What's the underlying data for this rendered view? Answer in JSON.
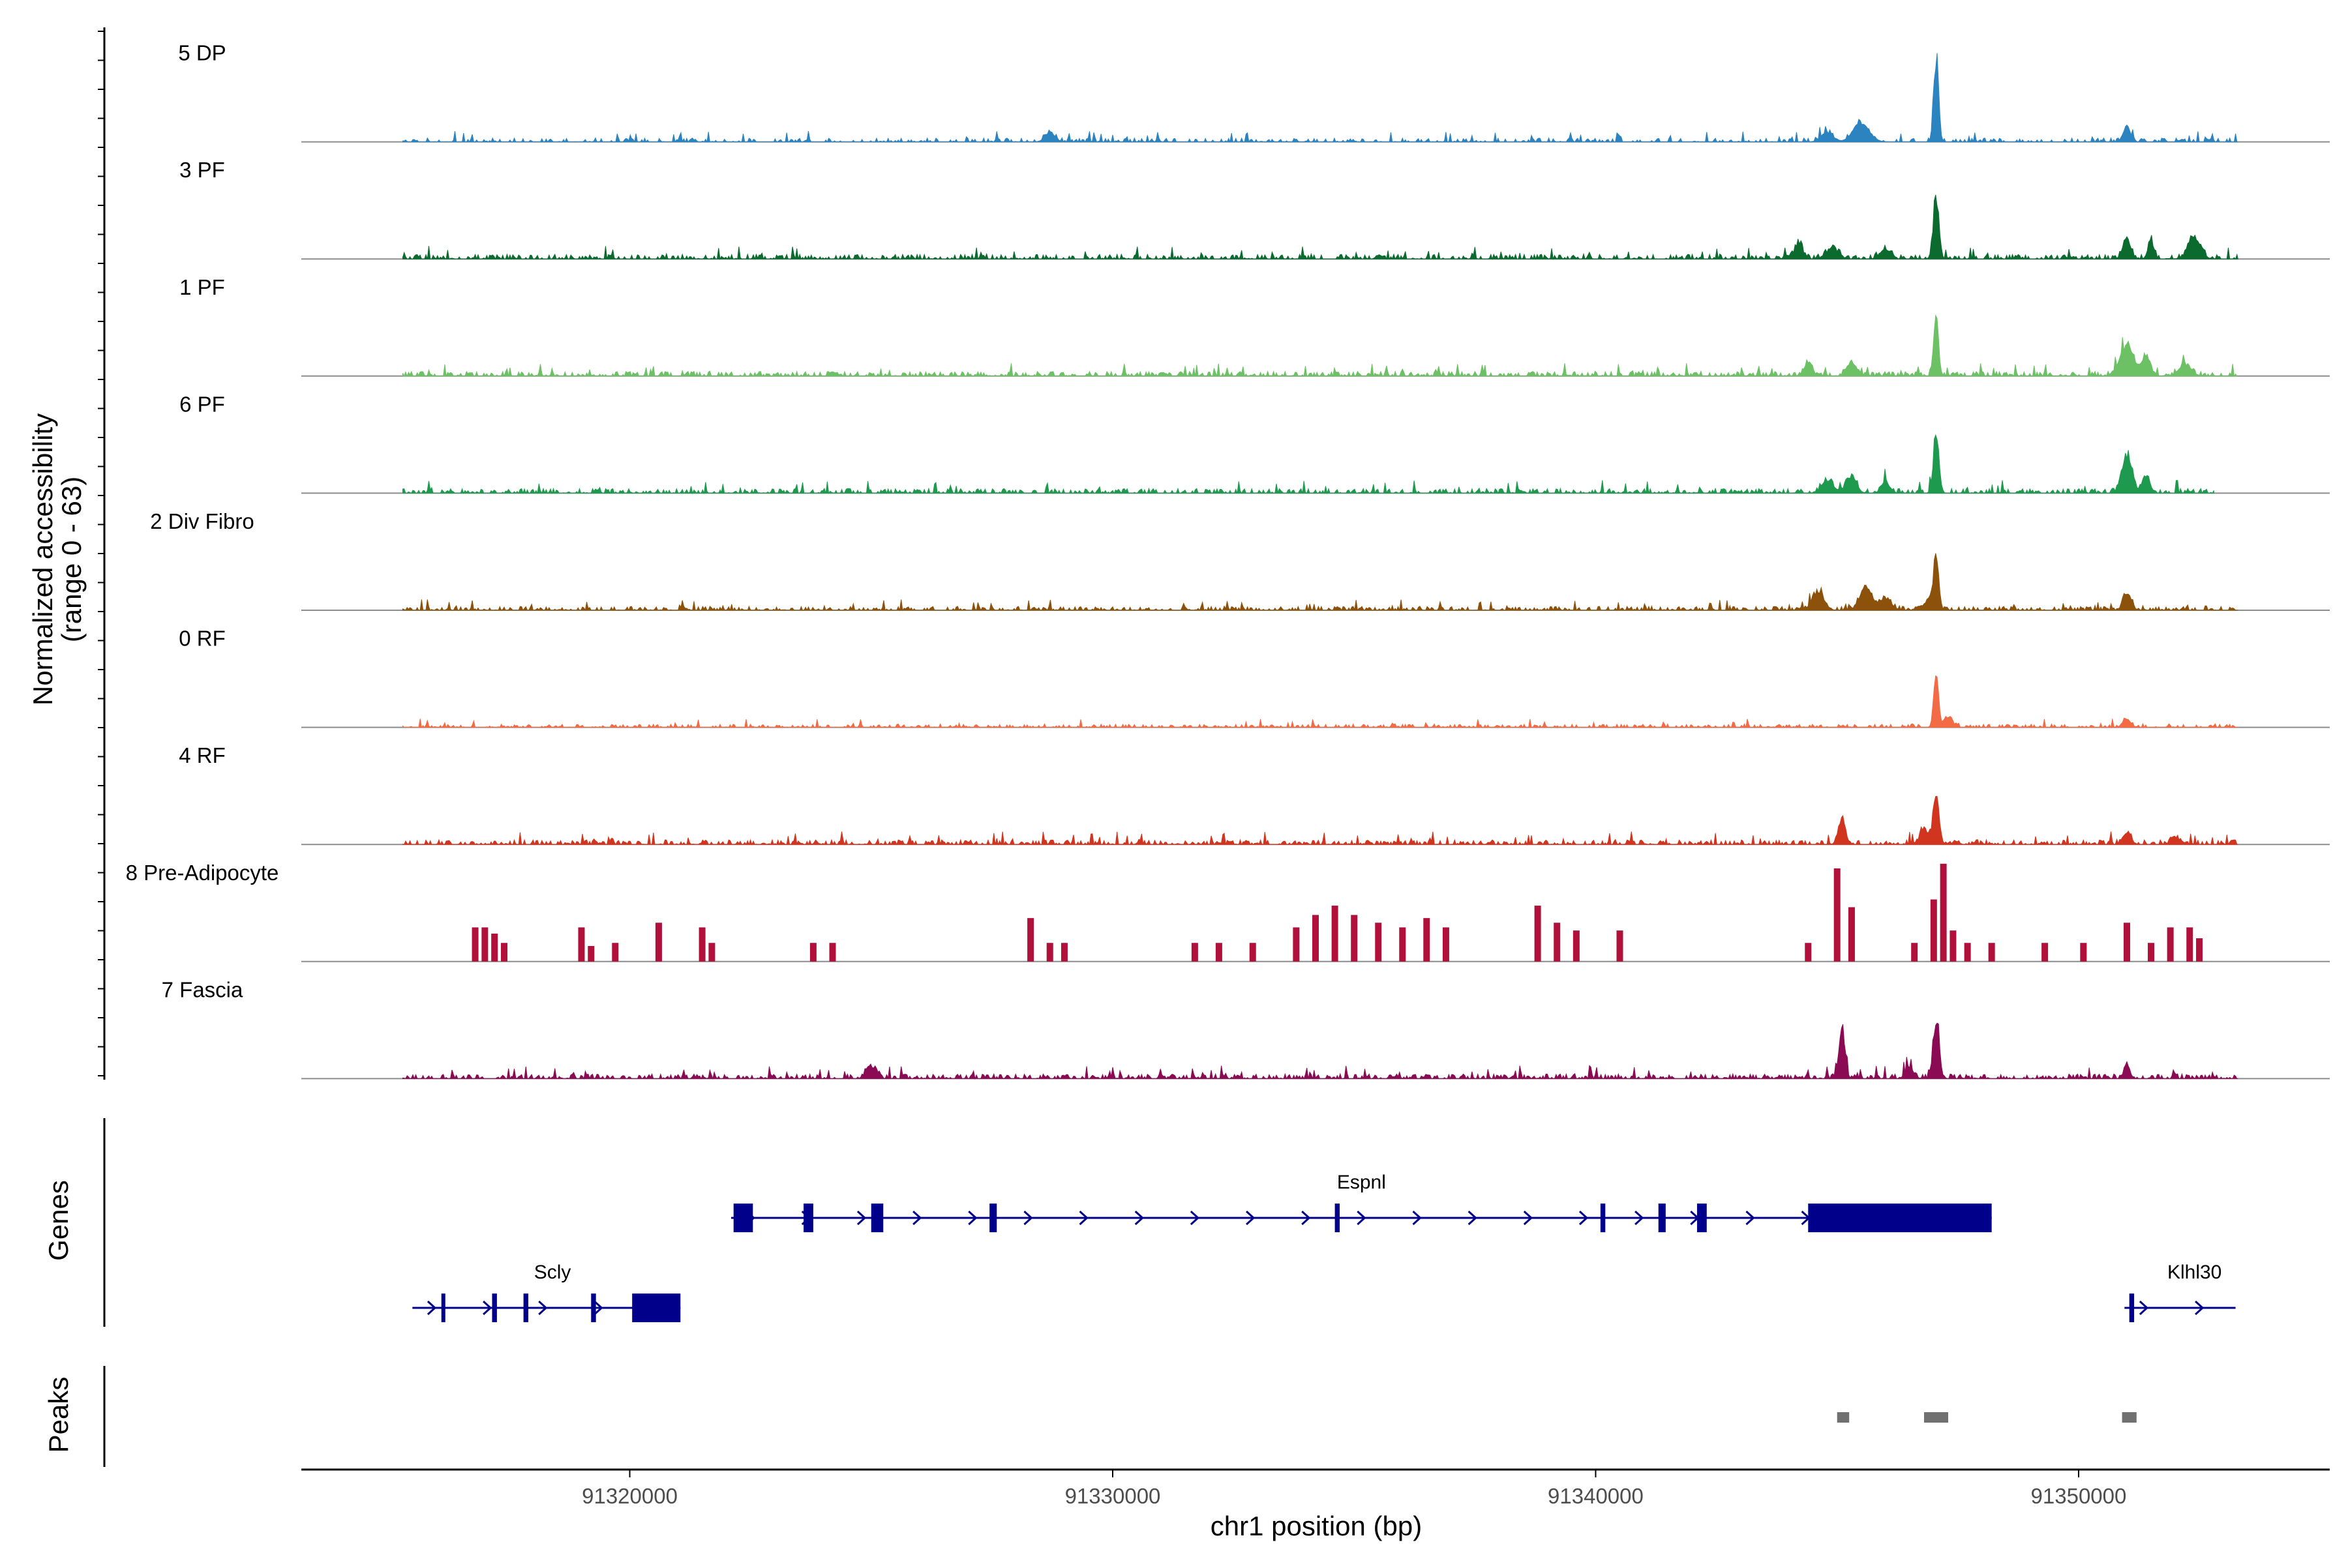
{
  "chart_data": {
    "type": "coverage",
    "title": "",
    "y_axis_label_line1": "Normalized accessibility",
    "y_axis_label_line2": "(range 0 - 63)",
    "y_range": [
      0,
      63
    ],
    "x_axis_label": "chr1 position (bp)",
    "xlim": [
      91313200,
      91355200
    ],
    "x_ticks": [
      {
        "value": 91320000,
        "label": "91320000"
      },
      {
        "value": 91330000,
        "label": "91330000"
      },
      {
        "value": 91340000,
        "label": "91340000"
      },
      {
        "value": 91350000,
        "label": "91350000"
      }
    ],
    "tracks": [
      {
        "label": "5 DP",
        "color": "#2b83c0",
        "start": 91315300,
        "end": 91353300,
        "base": 2.5,
        "density": 0.45,
        "seed": 11,
        "sparse": false,
        "peaks": [
          [
            91347050,
            63,
            120
          ],
          [
            91345500,
            14,
            400
          ],
          [
            91344800,
            7,
            300
          ],
          [
            91351000,
            11,
            180
          ],
          [
            91328700,
            7,
            250
          ]
        ]
      },
      {
        "label": "3 PF",
        "color": "#0b6b2f",
        "start": 91315300,
        "end": 91353300,
        "base": 3,
        "density": 0.55,
        "seed": 23,
        "sparse": false,
        "peaks": [
          [
            91347050,
            48,
            140
          ],
          [
            91352400,
            17,
            300
          ],
          [
            91351000,
            15,
            200
          ],
          [
            91351500,
            13,
            150
          ],
          [
            91344200,
            12,
            200
          ],
          [
            91344900,
            8,
            300
          ],
          [
            91346000,
            7,
            250
          ]
        ]
      },
      {
        "label": "1 PF",
        "color": "#6cc164",
        "start": 91315300,
        "end": 91353300,
        "base": 3,
        "density": 0.6,
        "seed": 37,
        "sparse": false,
        "peaks": [
          [
            91347050,
            47,
            120
          ],
          [
            91351000,
            22,
            350
          ],
          [
            91351400,
            15,
            200
          ],
          [
            91345300,
            10,
            250
          ],
          [
            91344400,
            9,
            200
          ],
          [
            91352200,
            8,
            300
          ]
        ]
      },
      {
        "label": "6 PF",
        "color": "#1e9a4f",
        "start": 91315300,
        "end": 91352800,
        "base": 3,
        "density": 0.6,
        "seed": 51,
        "sparse": false,
        "peaks": [
          [
            91347050,
            42,
            140
          ],
          [
            91351000,
            27,
            250
          ],
          [
            91351400,
            12,
            200
          ],
          [
            91345300,
            12,
            250
          ],
          [
            91344800,
            9,
            300
          ],
          [
            91346000,
            8,
            200
          ]
        ]
      },
      {
        "label": "2 Div Fibro",
        "color": "#8c510a",
        "start": 91315300,
        "end": 91353300,
        "base": 2.5,
        "density": 0.55,
        "seed": 67,
        "sparse": false,
        "peaks": [
          [
            91347050,
            41,
            130
          ],
          [
            91345600,
            17,
            300
          ],
          [
            91344600,
            13,
            300
          ],
          [
            91351000,
            12,
            200
          ],
          [
            91346900,
            8,
            200
          ],
          [
            91346000,
            9,
            300
          ]
        ]
      },
      {
        "label": "0 RF",
        "color": "#f26b45",
        "start": 91315300,
        "end": 91353300,
        "base": 2,
        "density": 0.5,
        "seed": 79,
        "sparse": false,
        "peaks": [
          [
            91347050,
            39,
            120
          ],
          [
            91347300,
            8,
            200
          ],
          [
            91351000,
            6,
            200
          ]
        ]
      },
      {
        "label": "4 RF",
        "color": "#d1351f",
        "start": 91315300,
        "end": 91353300,
        "base": 3,
        "density": 0.6,
        "seed": 97,
        "sparse": false,
        "peaks": [
          [
            91347050,
            38,
            150
          ],
          [
            91345100,
            19,
            180
          ],
          [
            91346800,
            12,
            200
          ],
          [
            91351000,
            9,
            200
          ],
          [
            91352000,
            6,
            200
          ]
        ]
      },
      {
        "label": "8 Pre-Adipocyte",
        "color": "#b0103a",
        "start": 91315300,
        "end": 91353300,
        "base": 0,
        "density": 0.0,
        "seed": 113,
        "sparse": true,
        "bars": [
          [
            91316800,
            22
          ],
          [
            91317000,
            22
          ],
          [
            91317200,
            18
          ],
          [
            91317400,
            12
          ],
          [
            91319000,
            22
          ],
          [
            91319200,
            10
          ],
          [
            91319700,
            12
          ],
          [
            91320600,
            25
          ],
          [
            91321500,
            22
          ],
          [
            91321700,
            12
          ],
          [
            91323800,
            12
          ],
          [
            91324200,
            12
          ],
          [
            91328300,
            28
          ],
          [
            91328700,
            12
          ],
          [
            91329000,
            12
          ],
          [
            91331700,
            12
          ],
          [
            91332200,
            12
          ],
          [
            91332900,
            12
          ],
          [
            91333800,
            22
          ],
          [
            91334200,
            30
          ],
          [
            91334600,
            36
          ],
          [
            91335000,
            30
          ],
          [
            91335500,
            25
          ],
          [
            91336000,
            22
          ],
          [
            91336500,
            28
          ],
          [
            91336900,
            22
          ],
          [
            91338800,
            36
          ],
          [
            91339200,
            25
          ],
          [
            91339600,
            20
          ],
          [
            91340500,
            20
          ],
          [
            91344400,
            12
          ],
          [
            91345000,
            60
          ],
          [
            91345300,
            35
          ],
          [
            91346600,
            12
          ],
          [
            91347000,
            40
          ],
          [
            91347200,
            66
          ],
          [
            91347400,
            20
          ],
          [
            91347700,
            12
          ],
          [
            91348200,
            12
          ],
          [
            91349300,
            12
          ],
          [
            91350100,
            12
          ],
          [
            91351000,
            25
          ],
          [
            91351500,
            12
          ],
          [
            91351900,
            22
          ],
          [
            91352300,
            22
          ],
          [
            91352500,
            15
          ]
        ]
      },
      {
        "label": "7 Fascia",
        "color": "#8a0a54",
        "start": 91315300,
        "end": 91353300,
        "base": 3,
        "density": 0.6,
        "seed": 131,
        "sparse": false,
        "peaks": [
          [
            91345100,
            36,
            150
          ],
          [
            91347050,
            44,
            150
          ],
          [
            91346500,
            8,
            200
          ],
          [
            91351000,
            10,
            150
          ],
          [
            91325000,
            9,
            250
          ]
        ]
      }
    ],
    "genes_axis_label": "Genes",
    "peaks_axis_label": "Peaks",
    "genes": [
      {
        "name": "Espnl",
        "start": 91322100,
        "end": 91348200,
        "row": 0,
        "exons": [
          [
            91322150,
            91322550
          ],
          [
            91323600,
            91323800
          ],
          [
            91325000,
            91325250
          ],
          [
            91327450,
            91327600
          ],
          [
            91334600,
            91334700
          ],
          [
            91340100,
            91340200
          ],
          [
            91341300,
            91341450
          ],
          [
            91342100,
            91342300
          ],
          [
            91344400,
            91348200
          ]
        ]
      },
      {
        "name": "Scly",
        "start": 91315500,
        "end": 91321050,
        "row": 1,
        "exons": [
          [
            91316100,
            91316150
          ],
          [
            91317150,
            91317250
          ],
          [
            91317800,
            91317900
          ],
          [
            91319200,
            91319300
          ],
          [
            91320050,
            91321050
          ]
        ]
      },
      {
        "name": "Klhl30",
        "start": 91350950,
        "end": 91353250,
        "row": 1,
        "exons": [
          [
            91351050,
            91351150
          ]
        ]
      }
    ],
    "peaks": [
      [
        91345000,
        91345250
      ],
      [
        91346800,
        91347300
      ],
      [
        91350900,
        91351200
      ]
    ]
  }
}
